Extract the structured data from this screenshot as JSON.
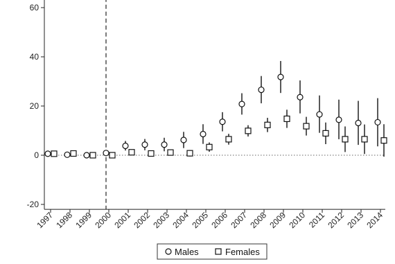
{
  "chart_data": {
    "type": "scatter",
    "title": "",
    "xlabel": "",
    "ylabel": "",
    "ylim": [
      -22,
      64
    ],
    "yticks": [
      -20,
      0,
      20,
      40,
      60
    ],
    "x": [
      "1997",
      "1998",
      "1999",
      "2000",
      "2001",
      "2002",
      "2003",
      "2004",
      "2005",
      "2006",
      "2007",
      "2008",
      "2009",
      "2010",
      "2011",
      "2012",
      "2013",
      "2014"
    ],
    "reference_line_x": "2000",
    "reference_line_y": 0,
    "grid": false,
    "legend_position": "bottom",
    "series": [
      {
        "name": "Males",
        "marker": "circle",
        "values": [
          0.6,
          0.2,
          0.0,
          0.9,
          3.8,
          4.3,
          4.3,
          6.2,
          8.6,
          13.6,
          20.8,
          26.6,
          31.8,
          23.6,
          16.6,
          14.4,
          13.1,
          13.4
        ],
        "ci_low": [
          -0.4,
          -0.3,
          -0.4,
          0.0,
          1.9,
          2.0,
          1.6,
          2.9,
          4.6,
          9.7,
          16.5,
          21.1,
          25.3,
          17.0,
          9.1,
          6.5,
          4.2,
          3.6
        ],
        "ci_high": [
          1.6,
          0.7,
          0.4,
          1.9,
          5.8,
          6.6,
          7.1,
          9.5,
          12.6,
          17.5,
          25.2,
          32.2,
          38.3,
          30.4,
          24.3,
          22.6,
          22.1,
          23.2
        ]
      },
      {
        "name": "Females",
        "marker": "square",
        "values": [
          0.6,
          0.7,
          0.0,
          0.0,
          1.2,
          0.7,
          1.1,
          0.8,
          3.3,
          6.5,
          9.9,
          12.3,
          14.8,
          11.8,
          8.9,
          6.5,
          6.5,
          6.0
        ],
        "ci_low": [
          0.2,
          0.2,
          -0.2,
          -0.4,
          0.3,
          -0.2,
          0.0,
          -0.5,
          1.4,
          4.3,
          7.6,
          9.4,
          11.1,
          8.0,
          4.5,
          1.3,
          0.5,
          -0.6
        ],
        "ci_high": [
          1.0,
          1.2,
          0.2,
          0.4,
          2.1,
          1.6,
          2.2,
          2.1,
          5.2,
          8.7,
          12.2,
          15.2,
          18.5,
          15.6,
          13.3,
          11.7,
          12.5,
          12.6
        ]
      }
    ]
  },
  "legend": {
    "males_label": "Males",
    "females_label": "Females"
  }
}
